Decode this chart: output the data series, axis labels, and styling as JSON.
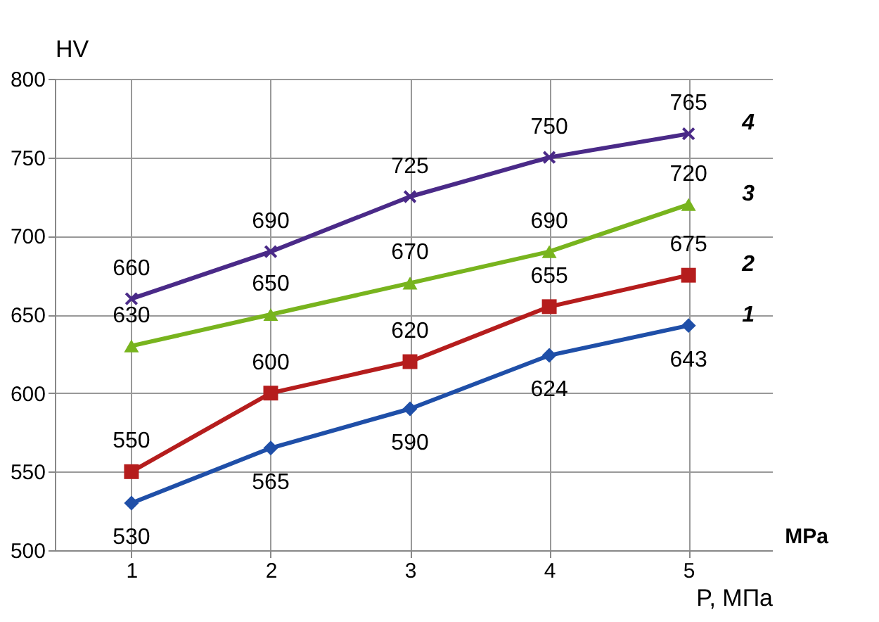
{
  "chart_data": {
    "type": "line",
    "ylabel": "HV",
    "xlabel": "P, МПа",
    "annotations": [
      "MPa"
    ],
    "x": [
      1,
      2,
      3,
      4,
      5
    ],
    "xlim": [
      0.45,
      5.6
    ],
    "xticks": [
      1,
      2,
      3,
      4,
      5
    ],
    "ylim": [
      500,
      800
    ],
    "yticks": [
      500,
      550,
      600,
      650,
      700,
      750,
      800
    ],
    "grid": true,
    "data_labels": true,
    "series": [
      {
        "name": "1",
        "color": "#1f4fa8",
        "marker": "diamond",
        "values": [
          530,
          565,
          590,
          624,
          643
        ]
      },
      {
        "name": "2",
        "color": "#b51d1d",
        "marker": "square",
        "values": [
          550,
          600,
          620,
          655,
          675
        ]
      },
      {
        "name": "3",
        "color": "#78b41e",
        "marker": "triangle",
        "values": [
          630,
          650,
          670,
          690,
          720
        ]
      },
      {
        "name": "4",
        "color": "#4a2a88",
        "marker": "cross",
        "values": [
          660,
          690,
          725,
          750,
          765
        ]
      }
    ]
  }
}
